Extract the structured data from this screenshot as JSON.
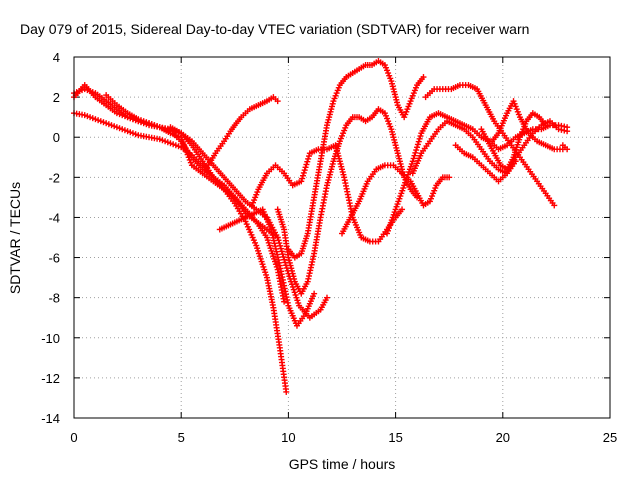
{
  "chart_data": {
    "type": "scatter",
    "title": "Day 079 of 2015, Sidereal Day-to-day VTEC variation (SDTVAR) for receiver warn",
    "xlabel": "GPS time / hours",
    "ylabel": "SDTVAR / TECUs",
    "xlim": [
      0,
      25
    ],
    "ylim": [
      -14,
      4
    ],
    "xticks": [
      "0",
      "5",
      "10",
      "15",
      "20",
      "25"
    ],
    "yticks": [
      "4",
      "2",
      "0",
      "-2",
      "-4",
      "-6",
      "-8",
      "-10",
      "-12",
      "-14"
    ],
    "grid": true,
    "marker": "plus",
    "color": "#ff0000",
    "series": [
      {
        "x": [
          0.0,
          0.5,
          1.0,
          1.5,
          2.0,
          2.5,
          3.0,
          3.5,
          4.0,
          4.5,
          5.0,
          5.5,
          6.0,
          6.5,
          7.0,
          7.5,
          8.0,
          8.5,
          9.0,
          9.5
        ],
        "y": [
          2.0,
          2.6,
          2.0,
          1.6,
          1.2,
          1.0,
          0.8,
          0.7,
          0.5,
          0.3,
          -0.2,
          -1.0,
          -1.6,
          -2.0,
          -2.4,
          -3.0,
          -3.8,
          -4.2,
          -4.6,
          -5.0
        ]
      },
      {
        "x": [
          0.0,
          0.5,
          1.0,
          1.5,
          2.0,
          2.5,
          3.0,
          3.5,
          4.0,
          4.5,
          5.0,
          5.5,
          6.0,
          6.5,
          7.0,
          7.5,
          8.0,
          8.5,
          9.0,
          9.3,
          9.6,
          9.9
        ],
        "y": [
          1.2,
          1.1,
          0.9,
          0.7,
          0.5,
          0.3,
          0.1,
          0.0,
          -0.1,
          -0.3,
          -0.5,
          -0.9,
          -1.4,
          -2.0,
          -2.6,
          -3.3,
          -4.2,
          -5.4,
          -7.0,
          -8.5,
          -10.5,
          -12.7
        ]
      },
      {
        "x": [
          0.0,
          0.5,
          1.0,
          1.5,
          2.0,
          2.5,
          3.0,
          3.5,
          4.0,
          4.5,
          5.0,
          5.2,
          5.5,
          6.0,
          6.5,
          7.0,
          7.5,
          8.0,
          8.5,
          9.0,
          9.5,
          9.8
        ],
        "y": [
          2.2,
          2.4,
          2.2,
          1.8,
          1.4,
          1.0,
          0.8,
          0.6,
          0.5,
          0.2,
          0.0,
          -0.6,
          -1.4,
          -1.8,
          -2.2,
          -2.6,
          -3.0,
          -3.6,
          -4.2,
          -5.0,
          -6.6,
          -8.2
        ]
      },
      {
        "x": [
          1.5,
          2.0,
          2.5,
          3.0,
          3.5,
          4.0,
          4.5,
          5.0,
          5.5,
          6.0,
          6.5,
          7.0,
          7.5,
          7.8
        ],
        "y": [
          2.1,
          1.6,
          1.2,
          0.9,
          0.7,
          0.5,
          0.4,
          0.2,
          -0.4,
          -1.2,
          -2.0,
          -2.6,
          -3.0,
          -3.4
        ]
      },
      {
        "x": [
          4.5,
          5.0,
          5.5,
          6.0,
          6.5,
          7.0,
          7.5,
          8.0,
          8.5,
          9.0,
          9.5,
          10.0,
          10.5,
          11.0,
          11.5,
          11.8
        ],
        "y": [
          0.5,
          0.2,
          -0.2,
          -0.8,
          -1.4,
          -2.0,
          -2.6,
          -3.2,
          -3.6,
          -4.0,
          -5.0,
          -6.8,
          -8.4,
          -9.0,
          -8.6,
          -8.0
        ]
      },
      {
        "x": [
          6.2,
          6.6,
          7.0,
          7.3,
          7.5,
          7.8,
          8.2,
          8.6,
          9.0,
          9.3,
          9.5
        ],
        "y": [
          -1.5,
          -0.8,
          -0.2,
          0.3,
          0.6,
          1.0,
          1.4,
          1.6,
          1.8,
          2.0,
          1.8
        ]
      },
      {
        "x": [
          6.8,
          7.2,
          7.6,
          8.0,
          8.4,
          8.8,
          9.2,
          9.6,
          10.0,
          10.4,
          10.8,
          11.2
        ],
        "y": [
          -4.6,
          -4.4,
          -4.2,
          -4.0,
          -3.8,
          -3.6,
          -4.6,
          -6.4,
          -8.4,
          -9.4,
          -8.8,
          -7.8
        ]
      },
      {
        "x": [
          8.3,
          8.6,
          9.0,
          9.4,
          9.8,
          10.2,
          10.6,
          11.0,
          11.4,
          11.8,
          12.2,
          12.6,
          13.0,
          13.4,
          13.8,
          14.2,
          14.6,
          15.0,
          15.3
        ],
        "y": [
          -3.4,
          -2.6,
          -1.8,
          -1.4,
          -1.8,
          -2.4,
          -2.2,
          -0.8,
          -0.6,
          -0.6,
          -0.4,
          -2.0,
          -4.0,
          -5.0,
          -5.2,
          -5.2,
          -4.6,
          -4.0,
          -3.6
        ]
      },
      {
        "x": [
          9.5,
          9.8,
          10.0,
          10.3,
          10.6,
          10.9,
          11.2,
          11.5,
          11.8,
          12.1,
          12.4,
          12.7,
          13.0,
          13.3,
          13.6,
          13.9,
          14.2,
          14.5,
          14.8,
          15.1,
          15.4,
          15.7,
          16.0
        ],
        "y": [
          -3.6,
          -4.6,
          -6.0,
          -7.2,
          -7.8,
          -7.2,
          -5.8,
          -4.0,
          -2.4,
          -1.2,
          -0.2,
          0.6,
          1.0,
          1.0,
          0.8,
          1.0,
          1.4,
          1.2,
          0.4,
          -0.8,
          -2.0,
          -2.6,
          -3.0
        ]
      },
      {
        "x": [
          10.0,
          10.3,
          10.6,
          10.9,
          11.2,
          11.5,
          11.8,
          12.1,
          12.4,
          12.7,
          13.0,
          13.3,
          13.6,
          13.9,
          14.2,
          14.5,
          14.8,
          15.1,
          15.4,
          15.7,
          16.0,
          16.3
        ],
        "y": [
          -5.6,
          -6.0,
          -5.8,
          -4.8,
          -3.0,
          -1.2,
          0.6,
          1.8,
          2.6,
          3.0,
          3.2,
          3.4,
          3.6,
          3.6,
          3.8,
          3.6,
          2.8,
          1.6,
          1.0,
          1.8,
          2.6,
          3.0
        ]
      },
      {
        "x": [
          12.5,
          12.9,
          13.3,
          13.7,
          14.1,
          14.5,
          14.9,
          15.3,
          15.7,
          16.0,
          16.3,
          16.6,
          16.9,
          17.2,
          17.5
        ],
        "y": [
          -4.8,
          -4.0,
          -3.2,
          -2.2,
          -1.6,
          -1.4,
          -1.4,
          -1.8,
          -2.2,
          -2.8,
          -3.4,
          -3.2,
          -2.4,
          -2.0,
          -2.0
        ]
      },
      {
        "x": [
          14.6,
          15.0,
          15.4,
          15.8,
          16.2,
          16.6,
          17.0,
          17.4,
          17.8,
          18.2,
          18.6,
          19.0,
          19.4,
          19.8,
          20.2,
          20.6,
          21.0,
          21.4,
          21.8,
          22.2,
          22.6,
          23.0
        ],
        "y": [
          -4.8,
          -3.6,
          -2.4,
          -1.2,
          0.2,
          1.0,
          1.2,
          1.0,
          0.8,
          0.6,
          0.4,
          0.0,
          -0.2,
          -0.6,
          -0.4,
          0.0,
          0.2,
          0.4,
          0.4,
          0.6,
          0.6,
          0.5
        ]
      },
      {
        "x": [
          15.8,
          16.2,
          16.6,
          17.0,
          17.4,
          17.8,
          18.2,
          18.6,
          19.0,
          19.4,
          19.8,
          20.2,
          20.6
        ],
        "y": [
          -1.8,
          -0.8,
          -0.2,
          0.4,
          0.8,
          0.6,
          0.4,
          0.0,
          -0.6,
          -1.2,
          -1.6,
          -1.8,
          -1.2
        ]
      },
      {
        "x": [
          16.4,
          16.8,
          17.2,
          17.6,
          18.0,
          18.4,
          18.8,
          19.2,
          19.6,
          20.0,
          20.4,
          20.8,
          21.2,
          21.6,
          22.0,
          22.4
        ],
        "y": [
          2.0,
          2.4,
          2.4,
          2.4,
          2.6,
          2.6,
          2.4,
          1.6,
          0.8,
          0.2,
          -0.4,
          -1.0,
          -1.6,
          -2.2,
          -2.8,
          -3.4
        ]
      },
      {
        "x": [
          17.8,
          18.2,
          18.6,
          19.0,
          19.4,
          19.8,
          20.2,
          20.6,
          21.0,
          21.4,
          21.8,
          22.2,
          22.6,
          23.0
        ],
        "y": [
          -0.4,
          -0.8,
          -1.0,
          -1.4,
          -1.8,
          -2.2,
          -1.8,
          -1.0,
          -0.4,
          0.2,
          0.6,
          0.8,
          0.4,
          0.3
        ]
      },
      {
        "x": [
          19.0,
          19.3,
          19.6,
          19.9,
          20.2,
          20.5,
          20.8,
          21.1,
          21.4,
          21.7,
          22.0
        ],
        "y": [
          0.4,
          -0.2,
          -0.8,
          -1.4,
          -1.6,
          -1.0,
          0.0,
          0.8,
          1.2,
          1.0,
          0.6
        ]
      },
      {
        "x": [
          19.5,
          19.8,
          20.2,
          20.5,
          20.8,
          21.2,
          21.6,
          22.0,
          22.4,
          22.8
        ],
        "y": [
          -0.2,
          0.2,
          1.2,
          1.8,
          1.0,
          0.2,
          -0.2,
          -0.4,
          -0.6,
          -0.6
        ]
      },
      {
        "x": [
          22.8,
          23.0
        ],
        "y": [
          -0.4,
          -0.6
        ]
      }
    ]
  }
}
